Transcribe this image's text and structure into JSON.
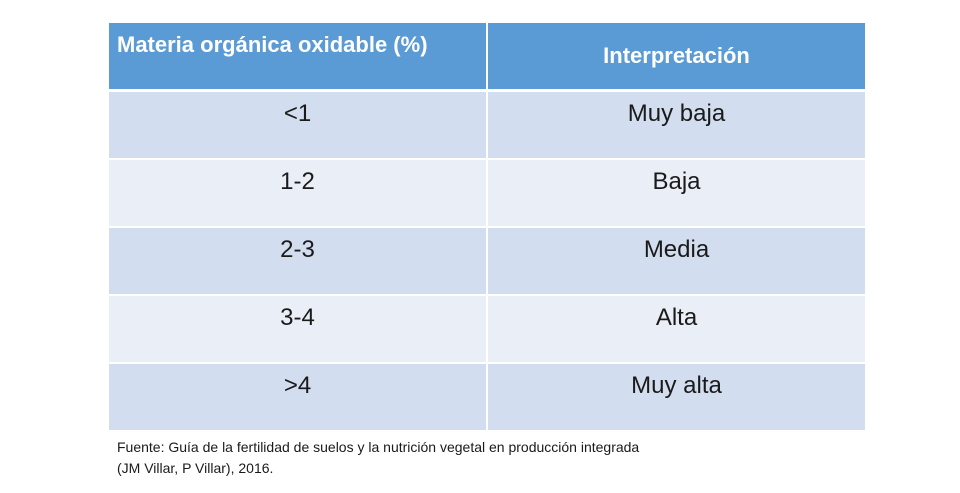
{
  "table": {
    "headers": [
      "Materia orgánica oxidable (%)",
      "Interpretación"
    ],
    "rows": [
      {
        "range": "<1",
        "interpretation": "Muy baja"
      },
      {
        "range": "1-2",
        "interpretation": "Baja"
      },
      {
        "range": "2-3",
        "interpretation": "Media"
      },
      {
        "range": "3-4",
        "interpretation": "Alta"
      },
      {
        "range": ">4",
        "interpretation": "Muy alta"
      }
    ]
  },
  "source": {
    "line1": "Fuente: Guía de la fertilidad de suelos y la nutrición vegetal en producción integrada",
    "line2": "(JM Villar, P Villar), 2016."
  },
  "colors": {
    "header_bg": "#5b9bd5",
    "row_dark": "#d2deef",
    "row_light": "#eaeff7"
  }
}
